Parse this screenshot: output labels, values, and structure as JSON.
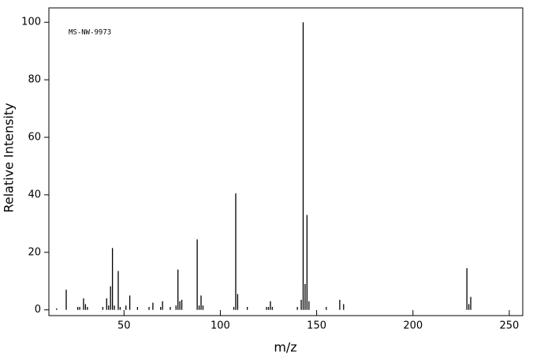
{
  "chart_data": {
    "type": "bar",
    "annotation": "MS-NW-9973",
    "x_label": "m/z",
    "y_label": "Relative Intensity",
    "x": [
      15,
      20,
      26,
      27,
      29,
      30,
      31,
      39,
      41,
      42,
      43,
      44,
      45,
      47,
      48,
      51,
      53,
      57,
      63,
      65,
      69,
      70,
      74,
      77,
      78,
      79,
      80,
      88,
      89,
      90,
      91,
      107,
      108,
      109,
      114,
      124,
      125,
      126,
      127,
      140,
      142,
      143,
      144,
      145,
      146,
      155,
      162,
      164,
      228,
      229,
      230
    ],
    "values": [
      0.5,
      7,
      1,
      1,
      4,
      2,
      1,
      1,
      4,
      1.5,
      8.2,
      21.5,
      1.5,
      13.5,
      1,
      1.5,
      5,
      1,
      1,
      2.5,
      1,
      3,
      1,
      1.5,
      14,
      3,
      3.5,
      24.5,
      1.5,
      5,
      1.5,
      1,
      40.5,
      5.5,
      1,
      1,
      1,
      3,
      1,
      1,
      3.5,
      100,
      9,
      33,
      3,
      1,
      3.5,
      2,
      14.5,
      2,
      4.5
    ],
    "color": "#000000",
    "xlim": [
      11,
      257
    ],
    "ylim": [
      -2,
      105
    ],
    "xticks": [
      50,
      100,
      150,
      200,
      250
    ],
    "yticks": [
      0,
      20,
      40,
      60,
      80,
      100
    ]
  }
}
